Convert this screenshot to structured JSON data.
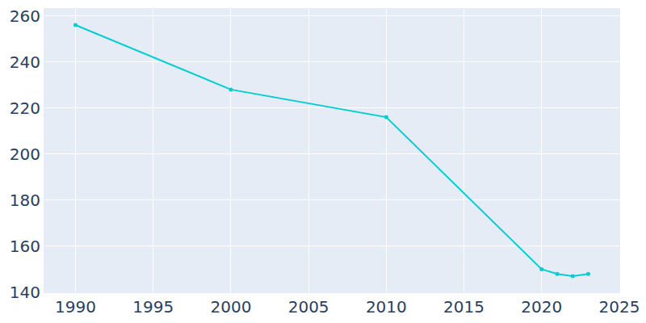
{
  "chart_data": {
    "type": "line",
    "x": [
      1990,
      2000,
      2010,
      2020,
      2021,
      2022,
      2023
    ],
    "values": [
      256,
      228,
      216,
      150,
      148,
      147,
      148
    ],
    "color": "#00ced1",
    "marker": "circle",
    "xlim": [
      1988,
      2025
    ],
    "ylim": [
      140,
      263
    ],
    "xticks": [
      1990,
      1995,
      2000,
      2005,
      2010,
      2015,
      2020,
      2025
    ],
    "yticks": [
      140,
      160,
      180,
      200,
      220,
      240,
      260
    ],
    "grid": true
  }
}
